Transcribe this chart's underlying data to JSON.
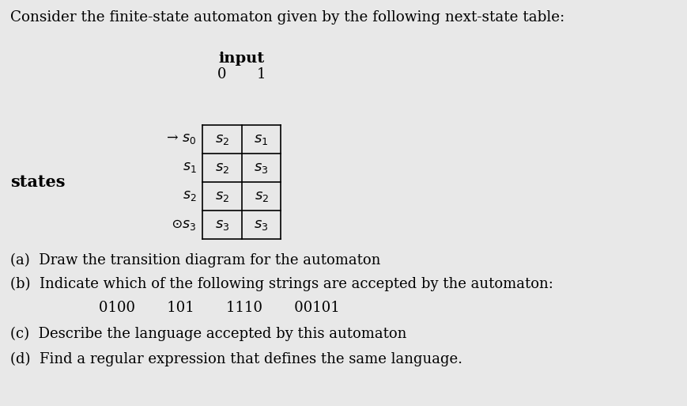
{
  "title": "Consider the finite-state automaton given by the following next-state table:",
  "title_fontsize": 13.2,
  "bg_color": "#e8e8e8",
  "text_color": "#000000",
  "table_header_input": "input",
  "table_col0": "0",
  "table_col1": "1",
  "states_label": "states",
  "row_states": [
    "→ $s_0$",
    "$s_1$",
    "$s_2$",
    "⊙$s_3$"
  ],
  "row_col0": [
    "$s_2$",
    "$s_2$",
    "$s_2$",
    "$s_3$"
  ],
  "row_col1": [
    "$s_1$",
    "$s_3$",
    "$s_2$",
    "$s_3$"
  ],
  "q_a": "(a)  Draw the transition diagram for the automaton",
  "q_b": "(b)  Indicate which of the following strings are accepted by the automaton:",
  "q_b2": "0100       101       1110       00101",
  "q_c": "(c)  Describe the language accepted by this automaton",
  "q_d": "(d)  Find a regular expression that defines the same language.",
  "q_fontsize": 13.0,
  "table_fontsize": 13.0,
  "state_fontsize": 12.5
}
